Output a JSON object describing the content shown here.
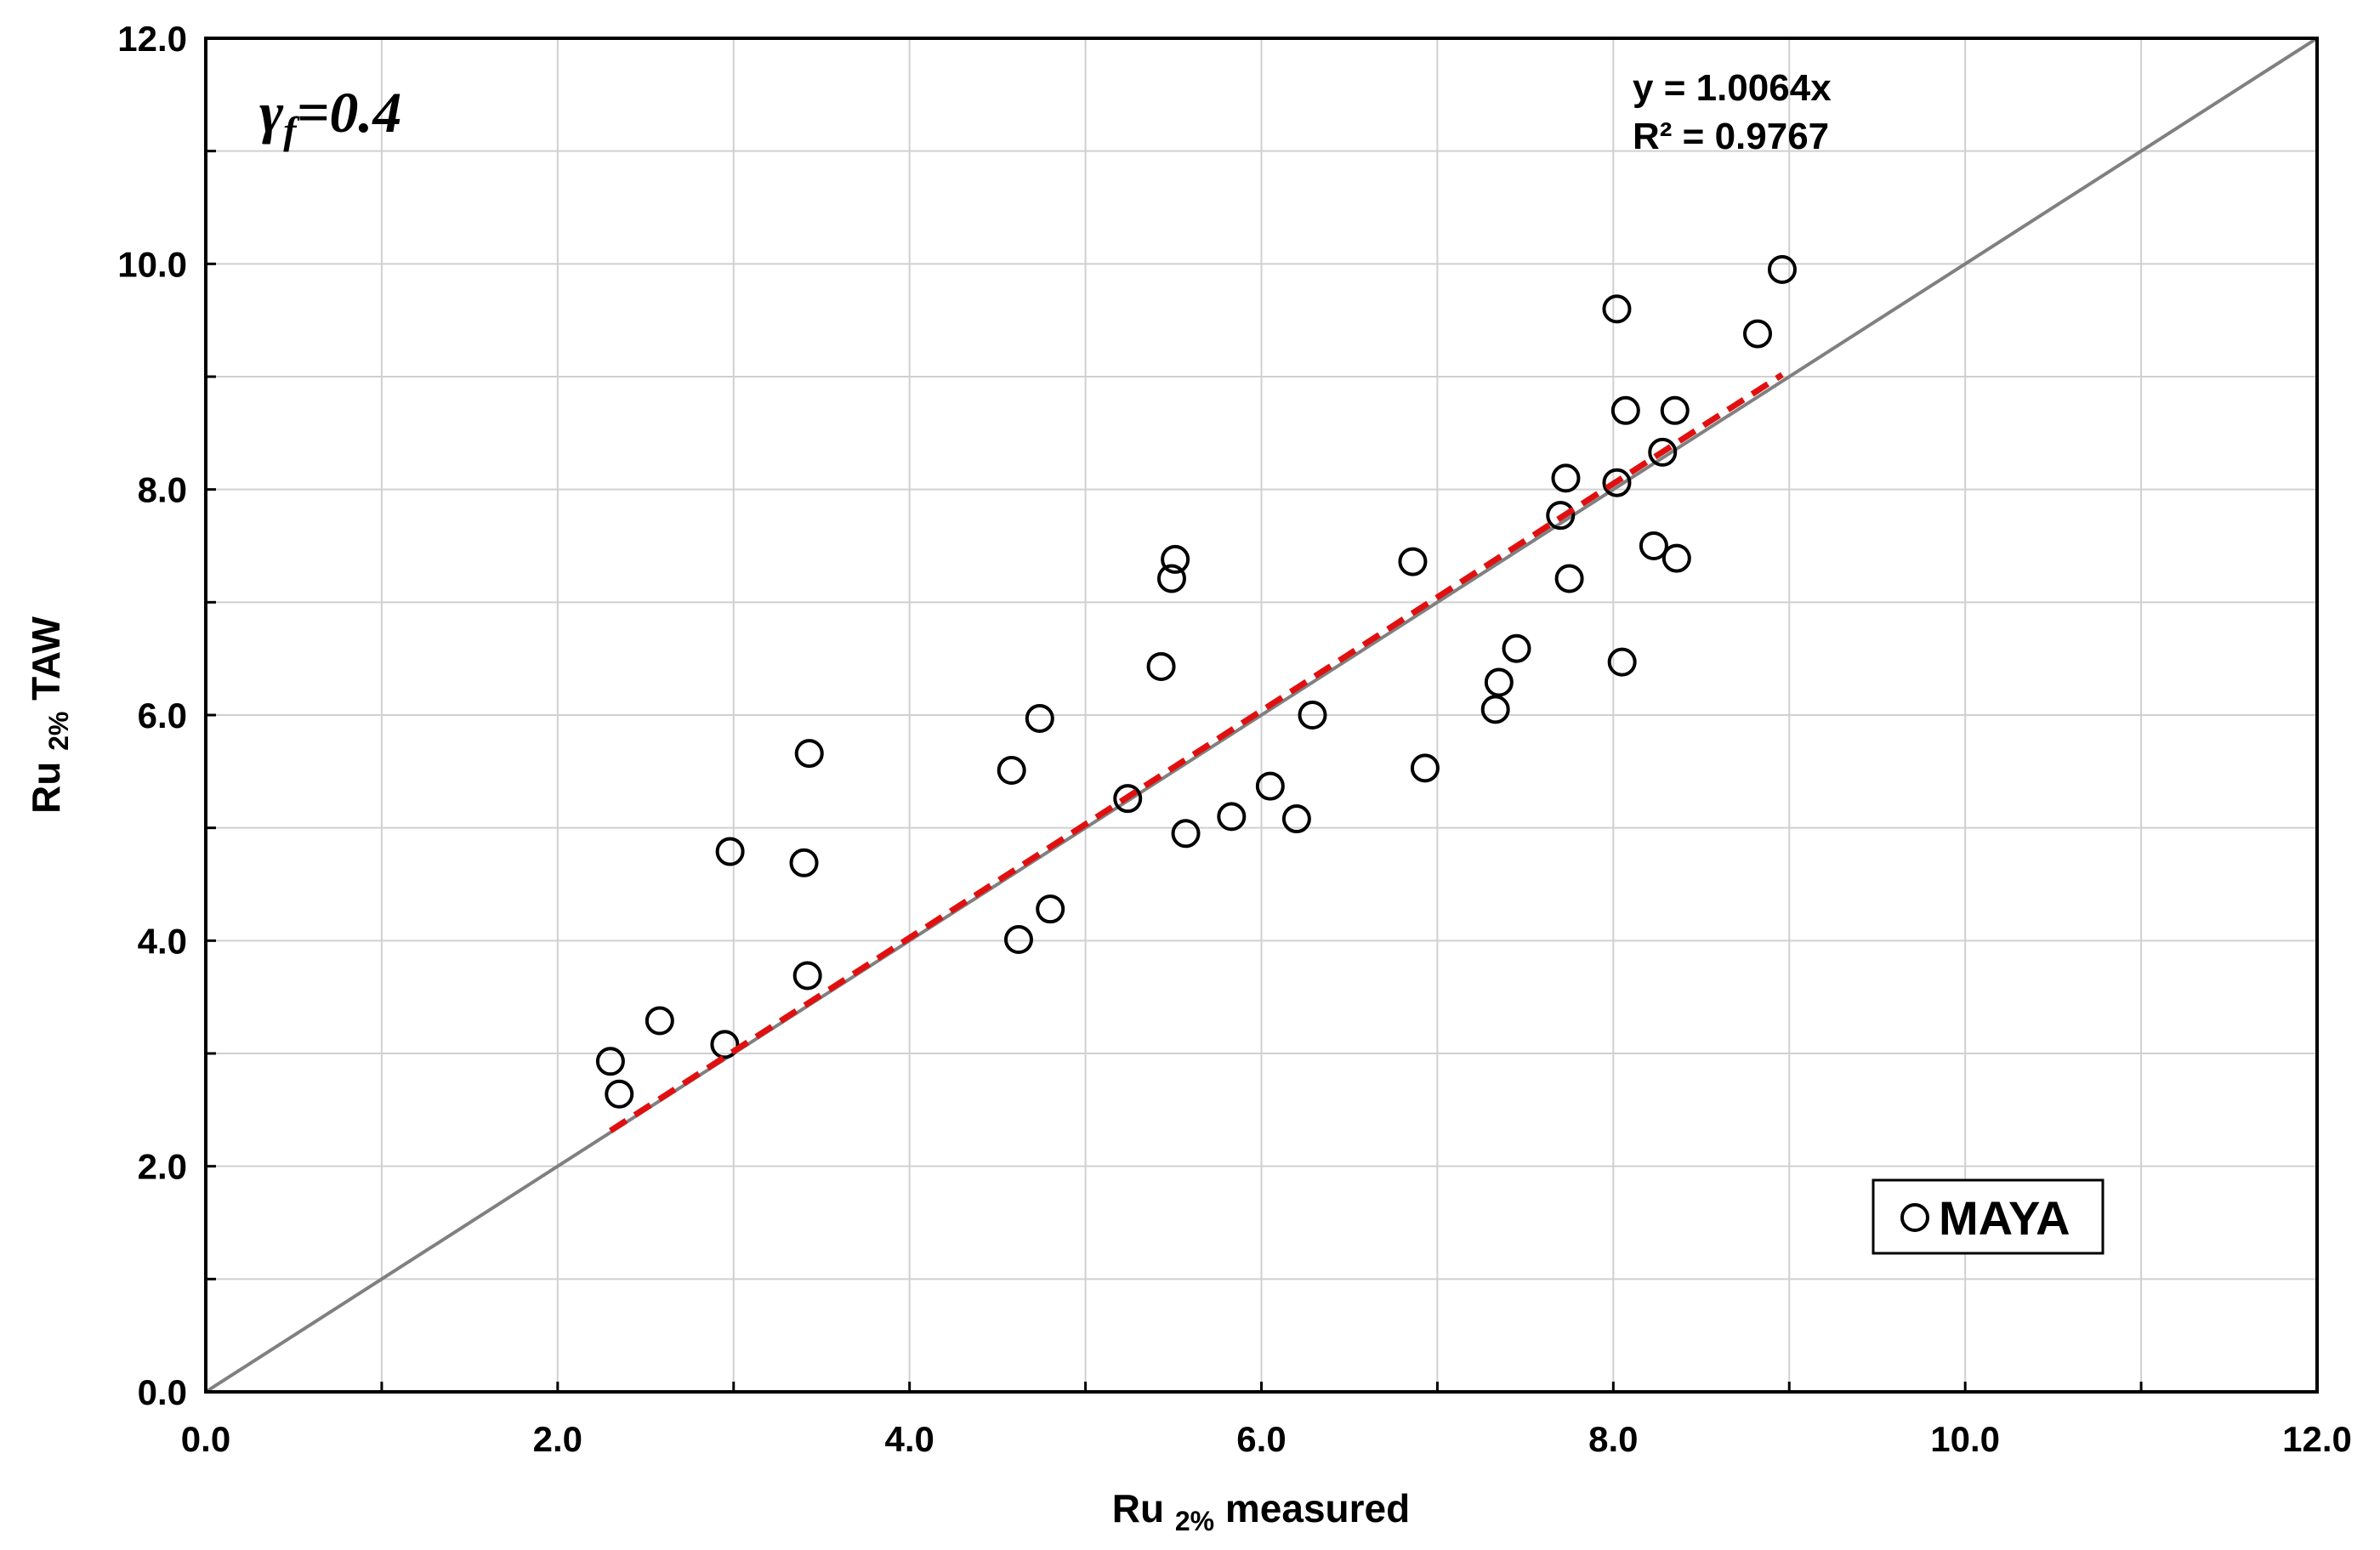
{
  "chart_data": {
    "type": "scatter",
    "xlabel": {
      "main": "Ru",
      "sub": "2%",
      "suffix": "measured"
    },
    "ylabel": {
      "main": "Ru",
      "sub": "2%",
      "suffix": "TAW"
    },
    "xlim": [
      0,
      12
    ],
    "ylim": [
      0,
      12
    ],
    "x_ticks": [
      "0.0",
      "2.0",
      "4.0",
      "6.0",
      "8.0",
      "10.0",
      "12.0"
    ],
    "y_ticks": [
      "0.0",
      "2.0",
      "4.0",
      "6.0",
      "8.0",
      "10.0",
      "12.0"
    ],
    "grid": true,
    "legend": {
      "placement": "bottom-right",
      "label": "MAYA"
    },
    "parameter_label": {
      "symbol": "γ",
      "sub": "f",
      "value": "=0.4"
    },
    "trendline": {
      "equation": "y = 1.0064x",
      "r2": "R² = 0.9767",
      "slope": 1.0064,
      "x_range": [
        2.3,
        8.96
      ]
    },
    "reference_line": {
      "slope": 1,
      "x_range": [
        0,
        12
      ]
    },
    "series": [
      {
        "name": "MAYA",
        "marker": "open-circle",
        "points": [
          [
            2.3,
            2.93
          ],
          [
            2.35,
            2.64
          ],
          [
            2.58,
            3.29
          ],
          [
            2.95,
            3.08
          ],
          [
            2.98,
            4.79
          ],
          [
            3.4,
            4.69
          ],
          [
            3.42,
            3.69
          ],
          [
            3.43,
            5.66
          ],
          [
            4.58,
            5.51
          ],
          [
            4.62,
            4.01
          ],
          [
            4.74,
            5.97
          ],
          [
            4.8,
            4.28
          ],
          [
            5.24,
            5.26
          ],
          [
            5.43,
            6.43
          ],
          [
            5.49,
            7.21
          ],
          [
            5.51,
            7.38
          ],
          [
            5.57,
            4.95
          ],
          [
            5.83,
            5.1
          ],
          [
            6.05,
            5.37
          ],
          [
            6.2,
            5.08
          ],
          [
            6.29,
            6.0
          ],
          [
            6.86,
            7.36
          ],
          [
            6.93,
            5.53
          ],
          [
            7.33,
            6.05
          ],
          [
            7.35,
            6.29
          ],
          [
            7.45,
            6.59
          ],
          [
            7.7,
            7.77
          ],
          [
            7.73,
            8.1
          ],
          [
            7.75,
            7.21
          ],
          [
            8.02,
            9.6
          ],
          [
            8.02,
            8.06
          ],
          [
            8.05,
            6.47
          ],
          [
            8.07,
            8.7
          ],
          [
            8.23,
            7.5
          ],
          [
            8.28,
            8.33
          ],
          [
            8.35,
            8.7
          ],
          [
            8.36,
            7.39
          ],
          [
            8.82,
            9.38
          ],
          [
            8.96,
            9.95
          ]
        ]
      }
    ],
    "colors": {
      "markers": "#000000",
      "trendline": "#e01010",
      "reference": "#808080",
      "grid": "#d0d0d0"
    }
  }
}
